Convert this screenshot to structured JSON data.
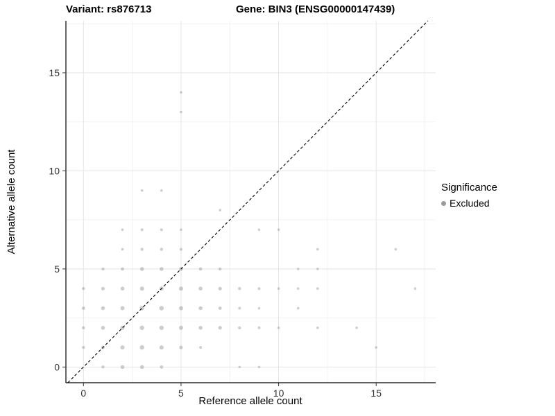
{
  "header": {
    "title_left": "Variant: rs876713",
    "title_right": "Gene: BIN3 (ENSG00000147439)"
  },
  "axes": {
    "xlabel": "Reference allele count",
    "ylabel": "Alternative allele count"
  },
  "legend": {
    "title": "Significance",
    "items": [
      {
        "label": "Excluded",
        "color": "#9b9b9b"
      }
    ]
  },
  "chart_data": {
    "type": "scatter",
    "title": "Variant: rs876713 / Gene: BIN3 (ENSG00000147439)",
    "xlabel": "Reference allele count",
    "ylabel": "Alternative allele count",
    "xlim": [
      -0.9,
      18.05
    ],
    "ylim": [
      -0.8,
      17.65
    ],
    "xticks": [
      0,
      5,
      10,
      15
    ],
    "yticks": [
      0,
      5,
      10,
      15
    ],
    "xminor": [
      2.5,
      7.5,
      12.5,
      17.5
    ],
    "yminor": [
      2.5,
      7.5,
      12.5,
      17.5
    ],
    "grid": true,
    "grid_major_color": "#e4e4e4",
    "grid_minor_color": "#f2f2f2",
    "identity_line": {
      "style": "dashed",
      "color": "#000000",
      "slope": 1,
      "intercept": 0
    },
    "point_color": "#9b9b9b",
    "point_opacity": 0.5,
    "legend_position": "right",
    "series": [
      {
        "name": "Excluded",
        "color": "#9b9b9b",
        "points": [
          [
            1,
            0,
            2.2
          ],
          [
            2,
            0,
            2.8
          ],
          [
            3,
            0,
            2.8
          ],
          [
            4,
            0,
            2.4
          ],
          [
            8,
            0,
            1.8
          ],
          [
            9,
            0,
            1.8
          ],
          [
            0,
            1,
            2.2
          ],
          [
            1,
            1,
            2.6
          ],
          [
            2,
            1,
            3.0
          ],
          [
            3,
            1,
            3.2
          ],
          [
            4,
            1,
            3.0
          ],
          [
            5,
            1,
            2.6
          ],
          [
            6,
            1,
            2.0
          ],
          [
            15,
            1,
            1.8
          ],
          [
            0,
            2,
            2.2
          ],
          [
            1,
            2,
            2.8
          ],
          [
            2,
            2,
            3.0
          ],
          [
            3,
            2,
            3.2
          ],
          [
            4,
            2,
            3.2
          ],
          [
            5,
            2,
            3.0
          ],
          [
            6,
            2,
            2.8
          ],
          [
            7,
            2,
            2.6
          ],
          [
            8,
            2,
            2.2
          ],
          [
            9,
            2,
            2.0
          ],
          [
            10,
            2,
            1.8
          ],
          [
            12,
            2,
            1.8
          ],
          [
            14,
            2,
            1.8
          ],
          [
            0,
            3,
            2.4
          ],
          [
            1,
            3,
            2.8
          ],
          [
            2,
            3,
            3.0
          ],
          [
            3,
            3,
            3.2
          ],
          [
            4,
            3,
            3.2
          ],
          [
            5,
            3,
            3.0
          ],
          [
            6,
            3,
            2.8
          ],
          [
            7,
            3,
            2.4
          ],
          [
            8,
            3,
            2.0
          ],
          [
            9,
            3,
            1.8
          ],
          [
            11,
            3,
            1.8
          ],
          [
            0,
            4,
            2.2
          ],
          [
            1,
            4,
            2.6
          ],
          [
            2,
            4,
            2.8
          ],
          [
            3,
            4,
            3.0
          ],
          [
            4,
            4,
            3.0
          ],
          [
            5,
            4,
            3.0
          ],
          [
            6,
            4,
            2.8
          ],
          [
            7,
            4,
            2.6
          ],
          [
            8,
            4,
            2.2
          ],
          [
            9,
            4,
            2.0
          ],
          [
            10,
            4,
            1.8
          ],
          [
            11,
            4,
            1.8
          ],
          [
            12,
            4,
            1.8
          ],
          [
            17,
            4,
            1.8
          ],
          [
            1,
            5,
            2.2
          ],
          [
            2,
            5,
            2.4
          ],
          [
            3,
            5,
            2.8
          ],
          [
            4,
            5,
            2.8
          ],
          [
            5,
            5,
            2.8
          ],
          [
            6,
            5,
            2.4
          ],
          [
            7,
            5,
            2.2
          ],
          [
            11,
            5,
            1.8
          ],
          [
            12,
            5,
            1.8
          ],
          [
            2,
            6,
            1.8
          ],
          [
            3,
            6,
            2.2
          ],
          [
            4,
            6,
            2.2
          ],
          [
            5,
            6,
            2.0
          ],
          [
            12,
            6,
            1.8
          ],
          [
            16,
            6,
            1.8
          ],
          [
            2,
            7,
            1.8
          ],
          [
            3,
            7,
            2.0
          ],
          [
            4,
            7,
            2.0
          ],
          [
            5,
            7,
            1.8
          ],
          [
            9,
            7,
            1.8
          ],
          [
            10,
            7,
            1.8
          ],
          [
            7,
            8,
            1.8
          ],
          [
            3,
            9,
            1.8
          ],
          [
            4,
            9,
            1.8
          ],
          [
            5,
            13,
            1.8
          ],
          [
            5,
            14,
            1.8
          ]
        ]
      }
    ]
  }
}
